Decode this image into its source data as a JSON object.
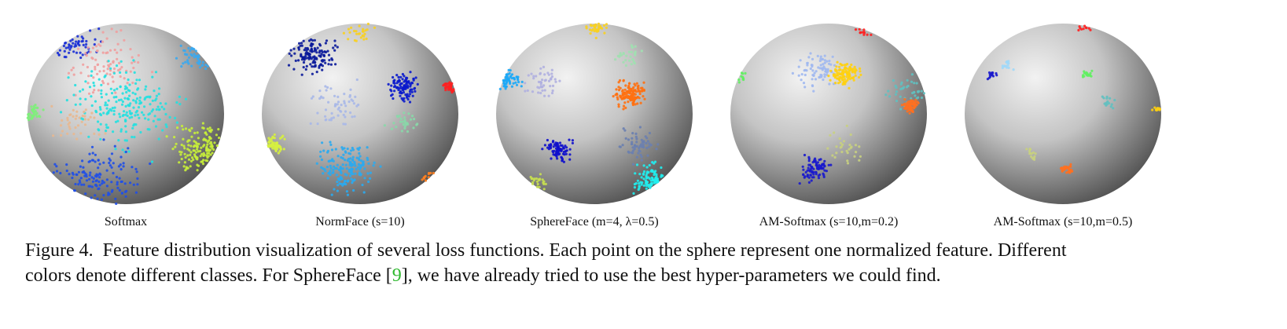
{
  "panels": [
    {
      "label": "Softmax"
    },
    {
      "label": "NormFace (s=10)"
    },
    {
      "label": "SphereFace (m=4, λ=0.5)"
    },
    {
      "label": "AM-Softmax (s=10,m=0.2)"
    },
    {
      "label": "AM-Softmax (s=10,m=0.5)"
    }
  ],
  "caption": {
    "line_1": "Figure 4.  Feature distribution visualization of several loss functions. Each point on the sphere represent one normalized feature. Different",
    "line_2_before": "colors denote different classes. For SphereFace [",
    "citation": "9",
    "line_2_after": "], we have already tried to use the best hyper-parameters we could find."
  }
}
